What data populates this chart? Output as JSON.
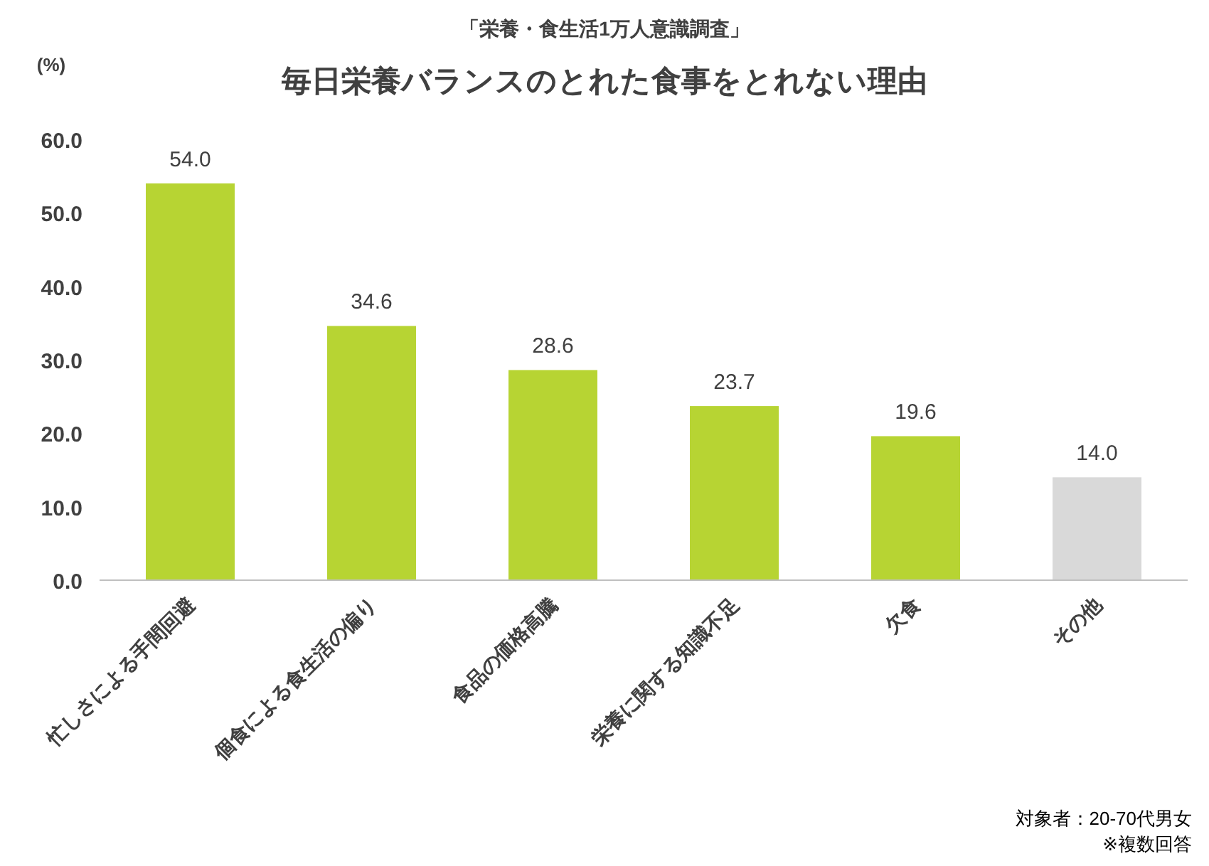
{
  "chart_data": {
    "type": "bar",
    "subtitle": "「栄養・食生活1万人意識調査」",
    "title": "毎日栄養バランスのとれた食事をとれない理由",
    "ylabel": "(%)",
    "categories": [
      "忙しさによる手間回避",
      "個食による食生活の偏り",
      "食品の価格高騰",
      "栄養に関する知識不足",
      "欠食",
      "その他"
    ],
    "values": [
      54.0,
      34.6,
      28.6,
      23.7,
      19.6,
      14.0
    ],
    "colors": [
      "#b7d433",
      "#b7d433",
      "#b7d433",
      "#b7d433",
      "#b7d433",
      "#d9d9d9"
    ],
    "value_labels": [
      "54.0",
      "34.6",
      "28.6",
      "23.7",
      "19.6",
      "14.0"
    ],
    "ylim": [
      0,
      60
    ],
    "yticks": [
      {
        "value": 0,
        "label": "0.0"
      },
      {
        "value": 10,
        "label": "10.0"
      },
      {
        "value": 20,
        "label": "20.0"
      },
      {
        "value": 30,
        "label": "30.0"
      },
      {
        "value": 40,
        "label": "40.0"
      },
      {
        "value": 50,
        "label": "50.0"
      },
      {
        "value": 60,
        "label": "60.0"
      }
    ],
    "annotations": [
      "対象者：20-70代男女",
      "※複数回答"
    ]
  }
}
